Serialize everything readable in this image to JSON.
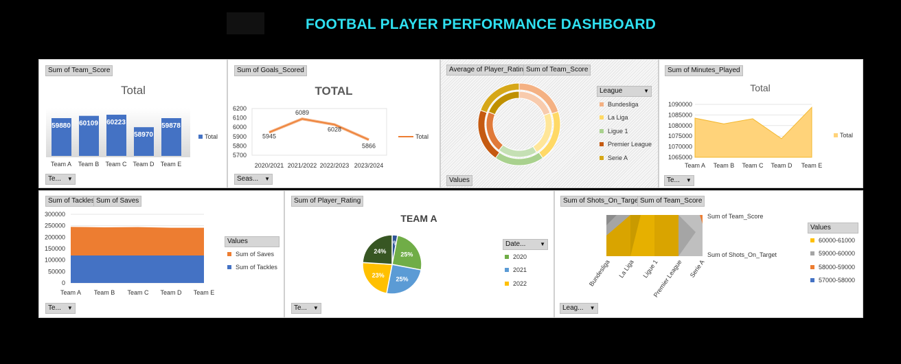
{
  "title": "FOOTBAL PLAYER PERFORMANCE DASHBOARD",
  "colors": {
    "accent": "#2fe0f0",
    "blue": "#4472c4",
    "orange": "#ed7d31",
    "gold": "#ffc000",
    "gray": "#a5a5a5",
    "green": "#70ad47",
    "lightblue": "#5b9bd5",
    "darkgreen": "#375623"
  },
  "panels": {
    "p1": {
      "field": "Sum of Team_Score",
      "chart_title": "Total",
      "legend": "Total",
      "filter": "Te..."
    },
    "p2": {
      "field": "Sum of Goals_Scored",
      "chart_title": "TOTAL",
      "legend": "Total",
      "filter": "Seas..."
    },
    "p3": {
      "field1": "Average of Player_Rating",
      "field2": "Sum of Team_Score",
      "legend_title": "League",
      "legend": [
        "Bundesliga",
        "La Liga",
        "Ligue 1",
        "Premier League",
        "Serie A"
      ],
      "values_btn": "Values"
    },
    "p4": {
      "field": "Sum of Minutes_Played",
      "chart_title": "Total",
      "legend": "Total",
      "filter": "Te..."
    },
    "p5": {
      "field1": "Sum of Tackles",
      "field2": "Sum of Saves",
      "legend_title": "Values",
      "legend": [
        "Sum of Saves",
        "Sum of Tackles"
      ],
      "filter": "Te..."
    },
    "p6": {
      "field": "Sum of Player_Rating",
      "chart_title": "TEAM A",
      "legend_title": "Date...",
      "legend": [
        "2020",
        "2021",
        "2022"
      ],
      "filter": "Te..."
    },
    "p7": {
      "field1": "Sum of Shots_On_Target",
      "field2": "Sum of Team_Score",
      "series_label1": "Sum of Team_Score",
      "series_label2": "Sum of Shots_On_Target",
      "legend_title": "Values",
      "legend": [
        "60000-61000",
        "59000-60000",
        "58000-59000",
        "57000-58000"
      ],
      "filter": "Leag..."
    }
  },
  "chart_data": [
    {
      "type": "bar",
      "title": "Total",
      "categories": [
        "Team A",
        "Team B",
        "Team C",
        "Team D",
        "Team E"
      ],
      "series": [
        {
          "name": "Total",
          "values": [
            59880,
            60109,
            60223,
            58970,
            59878
          ]
        }
      ]
    },
    {
      "type": "line",
      "title": "TOTAL",
      "categories": [
        "2020/2021",
        "2021/2022",
        "2022/2023",
        "2023/2024"
      ],
      "series": [
        {
          "name": "Total",
          "values": [
            5945,
            6089,
            6028,
            5866
          ]
        }
      ],
      "yticks": [
        "6200",
        "6100",
        "6000",
        "5900",
        "5800",
        "5700"
      ],
      "ylim": [
        5700,
        6200
      ]
    },
    {
      "type": "doughnut",
      "legend": [
        "Bundesliga",
        "La Liga",
        "Ligue 1",
        "Premier League",
        "Serie A"
      ]
    },
    {
      "type": "area",
      "title": "Total",
      "categories": [
        "Team A",
        "Team B",
        "Team C",
        "Team D",
        "Team E"
      ],
      "series": [
        {
          "name": "Total",
          "values": [
            1083500,
            1080800,
            1083200,
            1073800,
            1088600
          ]
        }
      ],
      "yticks": [
        "1090000",
        "1085000",
        "1080000",
        "1075000",
        "1070000",
        "1065000"
      ],
      "ylim": [
        1065000,
        1090000
      ]
    },
    {
      "type": "area",
      "categories": [
        "Team A",
        "Team B",
        "Team C",
        "Team D",
        "Team E"
      ],
      "series": [
        {
          "name": "Sum of Tackles",
          "values": [
            120000,
            120000,
            120000,
            120000,
            120000
          ]
        },
        {
          "name": "Sum of Saves",
          "values": [
            125000,
            123000,
            124000,
            121000,
            121000
          ]
        }
      ],
      "yticks": [
        "300000",
        "250000",
        "200000",
        "150000",
        "100000",
        "50000",
        "0"
      ],
      "ylim": [
        0,
        300000
      ]
    },
    {
      "type": "pie",
      "title": "TEAM A",
      "slices": [
        {
          "label": "3%",
          "value": 3
        },
        {
          "label": "25%",
          "value": 25
        },
        {
          "label": "25%",
          "value": 25
        },
        {
          "label": "23%",
          "value": 23
        },
        {
          "label": "24%",
          "value": 24
        }
      ]
    },
    {
      "type": "surface",
      "categories": [
        "Bundesliga",
        "La Liga",
        "Ligue 1",
        "Premier League",
        "Serie A"
      ],
      "legend": [
        "60000-61000",
        "59000-60000",
        "58000-59000",
        "57000-58000"
      ]
    }
  ]
}
